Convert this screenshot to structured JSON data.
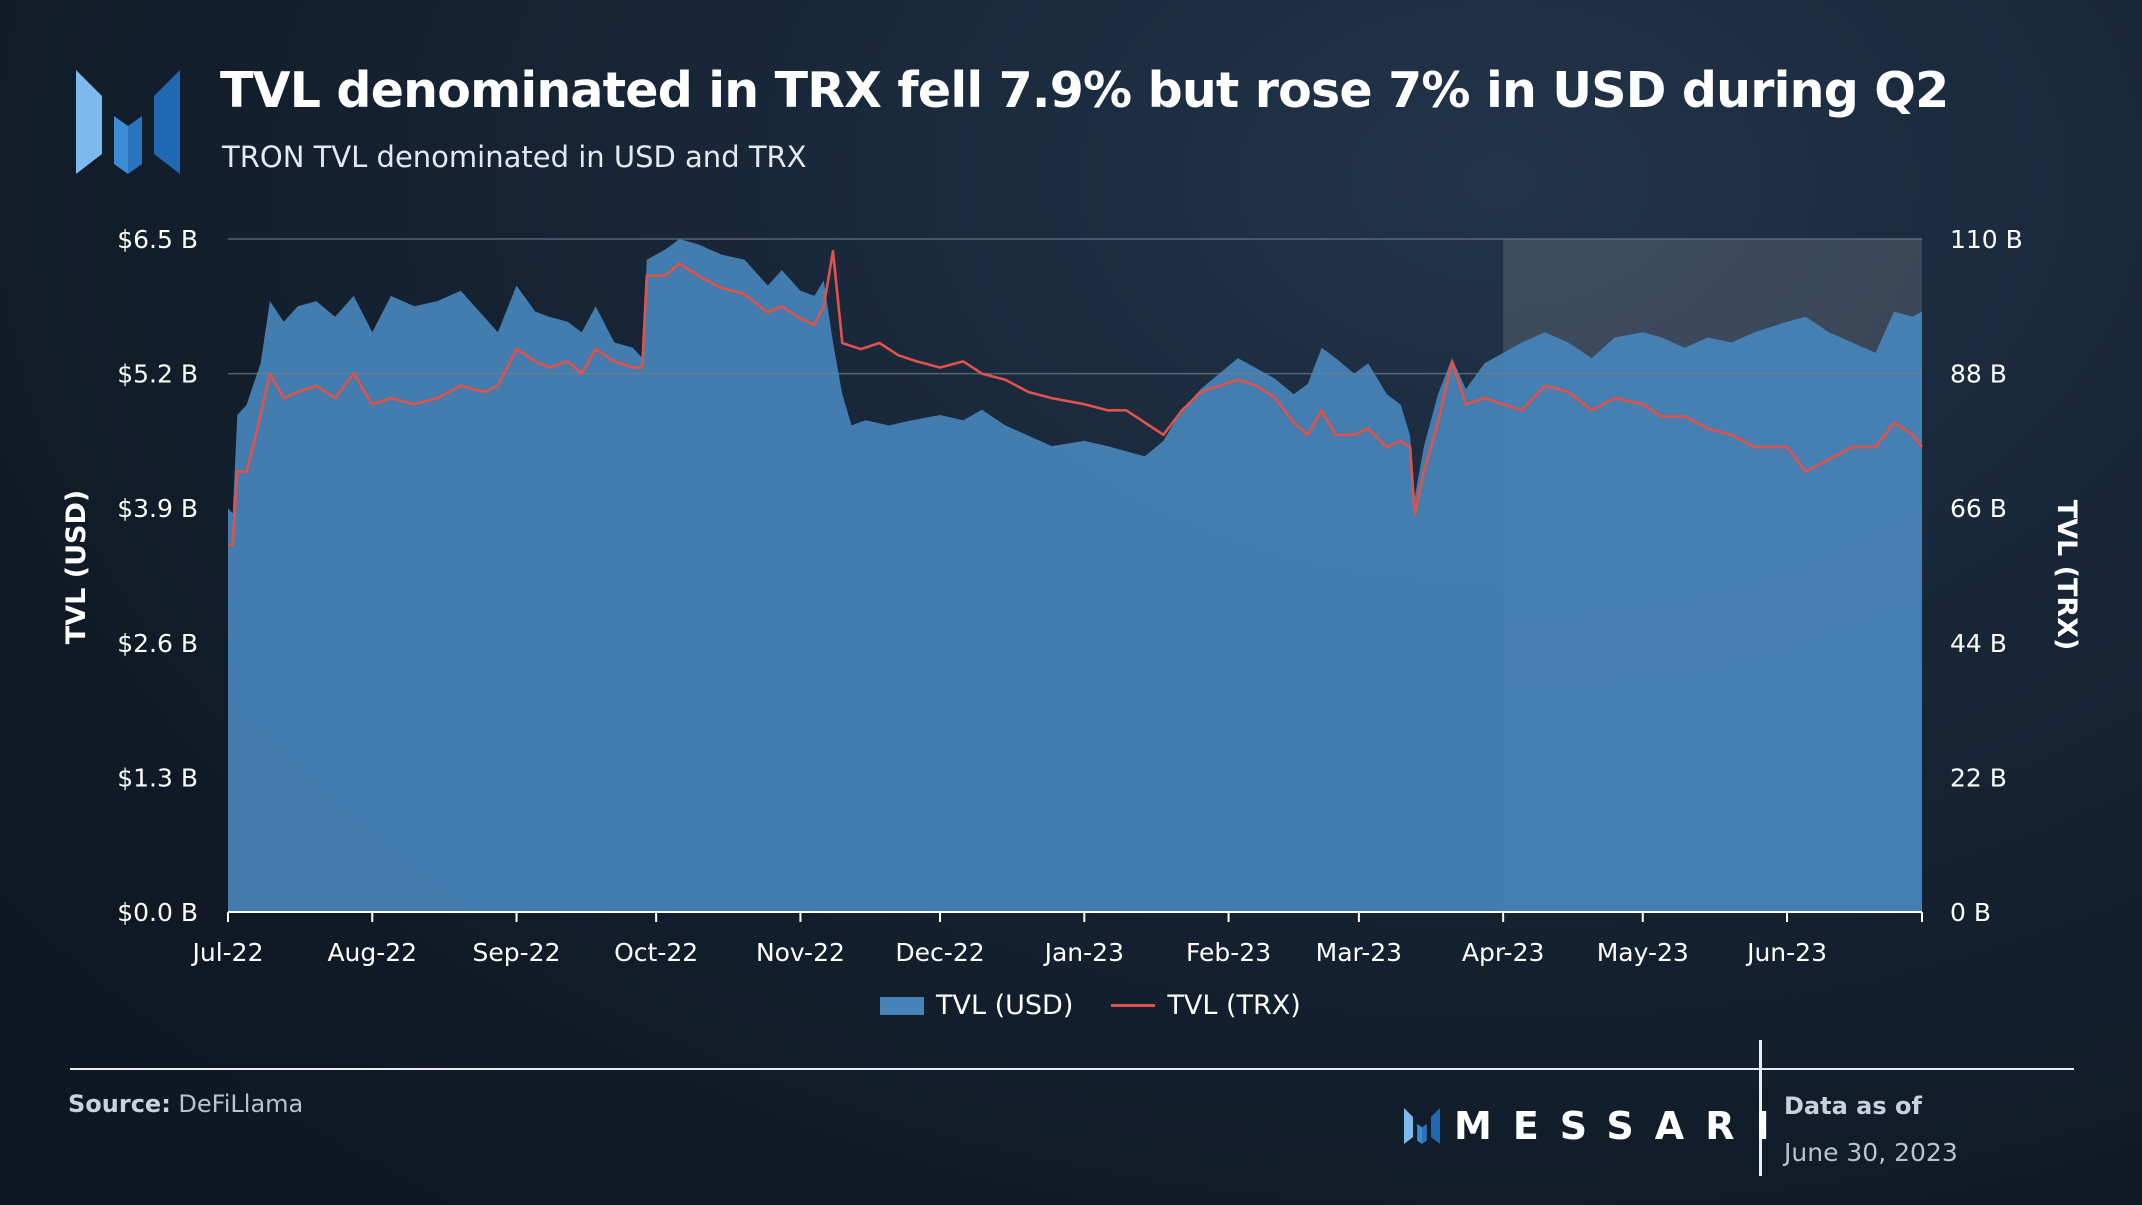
{
  "header": {
    "title": "TVL denominated in TRX fell 7.9% but rose 7% in USD during Q2",
    "subtitle": "TRON TVL denominated in USD and TRX"
  },
  "chart_data": {
    "type": "area",
    "title": "TVL denominated in TRX fell 7.9% but rose 7% in USD during Q2",
    "subtitle": "TRON TVL denominated in USD and TRX",
    "x_start": "2022-07-01",
    "x_end": "2023-06-30",
    "x_tick_labels": [
      "Jul-22",
      "Aug-22",
      "Sep-22",
      "Oct-22",
      "Nov-22",
      "Dec-22",
      "Jan-23",
      "Feb-23",
      "Mar-23",
      "Apr-23",
      "May-23",
      "Jun-23"
    ],
    "x_tick_dates": [
      "2022-07-01",
      "2022-08-01",
      "2022-09-01",
      "2022-10-01",
      "2022-11-01",
      "2022-12-01",
      "2023-01-01",
      "2023-02-01",
      "2023-03-01",
      "2023-04-01",
      "2023-05-01",
      "2023-06-01"
    ],
    "y_left": {
      "label": "TVL (USD)",
      "min": 0,
      "max": 6.5,
      "unit": "B",
      "tick_labels": [
        "$0.0 B",
        "$1.3 B",
        "$2.6 B",
        "$3.9 B",
        "$5.2 B",
        "$6.5 B"
      ],
      "tick_values": [
        0,
        1.3,
        2.6,
        3.9,
        5.2,
        6.5
      ]
    },
    "y_right": {
      "label": "TVL (TRX)",
      "min": 0,
      "max": 110,
      "unit": "B",
      "tick_labels": [
        "0 B",
        "22 B",
        "44 B",
        "66 B",
        "88 B",
        "110 B"
      ],
      "tick_values": [
        0,
        22,
        44,
        66,
        88,
        110
      ]
    },
    "highlight_range": [
      "2023-04-01",
      "2023-06-30"
    ],
    "grid": "horizontal at 5.2 and 6.5 only",
    "legend_position": "bottom-center",
    "series": [
      {
        "name": "TVL (USD)",
        "type": "area",
        "axis": "left",
        "color": "#4783b8",
        "points": [
          [
            "2022-07-01",
            3.9
          ],
          [
            "2022-07-02",
            3.85
          ],
          [
            "2022-07-03",
            4.8
          ],
          [
            "2022-07-05",
            4.9
          ],
          [
            "2022-07-08",
            5.3
          ],
          [
            "2022-07-10",
            5.9
          ],
          [
            "2022-07-13",
            5.7
          ],
          [
            "2022-07-16",
            5.85
          ],
          [
            "2022-07-20",
            5.9
          ],
          [
            "2022-07-24",
            5.75
          ],
          [
            "2022-07-28",
            5.95
          ],
          [
            "2022-08-01",
            5.6
          ],
          [
            "2022-08-05",
            5.95
          ],
          [
            "2022-08-10",
            5.85
          ],
          [
            "2022-08-15",
            5.9
          ],
          [
            "2022-08-20",
            6.0
          ],
          [
            "2022-08-25",
            5.75
          ],
          [
            "2022-08-28",
            5.6
          ],
          [
            "2022-09-01",
            6.05
          ],
          [
            "2022-09-05",
            5.8
          ],
          [
            "2022-09-08",
            5.75
          ],
          [
            "2022-09-12",
            5.7
          ],
          [
            "2022-09-15",
            5.6
          ],
          [
            "2022-09-18",
            5.85
          ],
          [
            "2022-09-22",
            5.5
          ],
          [
            "2022-09-26",
            5.45
          ],
          [
            "2022-09-28",
            5.35
          ],
          [
            "2022-09-29",
            6.3
          ],
          [
            "2022-10-03",
            6.4
          ],
          [
            "2022-10-06",
            6.5
          ],
          [
            "2022-10-10",
            6.45
          ],
          [
            "2022-10-15",
            6.35
          ],
          [
            "2022-10-20",
            6.3
          ],
          [
            "2022-10-25",
            6.05
          ],
          [
            "2022-10-28",
            6.2
          ],
          [
            "2022-11-01",
            6.0
          ],
          [
            "2022-11-04",
            5.95
          ],
          [
            "2022-11-06",
            6.1
          ],
          [
            "2022-11-08",
            5.5
          ],
          [
            "2022-11-10",
            5.0
          ],
          [
            "2022-11-12",
            4.7
          ],
          [
            "2022-11-15",
            4.75
          ],
          [
            "2022-11-20",
            4.7
          ],
          [
            "2022-11-25",
            4.75
          ],
          [
            "2022-12-01",
            4.8
          ],
          [
            "2022-12-06",
            4.75
          ],
          [
            "2022-12-10",
            4.85
          ],
          [
            "2022-12-15",
            4.7
          ],
          [
            "2022-12-20",
            4.6
          ],
          [
            "2022-12-25",
            4.5
          ],
          [
            "2023-01-01",
            4.55
          ],
          [
            "2023-01-06",
            4.5
          ],
          [
            "2023-01-10",
            4.45
          ],
          [
            "2023-01-14",
            4.4
          ],
          [
            "2023-01-18",
            4.55
          ],
          [
            "2023-01-22",
            4.85
          ],
          [
            "2023-01-26",
            5.05
          ],
          [
            "2023-01-30",
            5.2
          ],
          [
            "2023-02-03",
            5.35
          ],
          [
            "2023-02-07",
            5.25
          ],
          [
            "2023-02-11",
            5.15
          ],
          [
            "2023-02-15",
            5.0
          ],
          [
            "2023-02-18",
            5.1
          ],
          [
            "2023-02-21",
            5.45
          ],
          [
            "2023-02-24",
            5.35
          ],
          [
            "2023-02-28",
            5.2
          ],
          [
            "2023-03-03",
            5.3
          ],
          [
            "2023-03-07",
            5.0
          ],
          [
            "2023-03-10",
            4.9
          ],
          [
            "2023-03-12",
            4.6
          ],
          [
            "2023-03-13",
            4.0
          ],
          [
            "2023-03-15",
            4.5
          ],
          [
            "2023-03-18",
            5.0
          ],
          [
            "2023-03-21",
            5.35
          ],
          [
            "2023-03-24",
            5.05
          ],
          [
            "2023-03-28",
            5.3
          ],
          [
            "2023-04-01",
            5.4
          ],
          [
            "2023-04-05",
            5.5
          ],
          [
            "2023-04-10",
            5.6
          ],
          [
            "2023-04-15",
            5.5
          ],
          [
            "2023-04-20",
            5.35
          ],
          [
            "2023-04-25",
            5.55
          ],
          [
            "2023-05-01",
            5.6
          ],
          [
            "2023-05-05",
            5.55
          ],
          [
            "2023-05-10",
            5.45
          ],
          [
            "2023-05-15",
            5.55
          ],
          [
            "2023-05-20",
            5.5
          ],
          [
            "2023-05-25",
            5.6
          ],
          [
            "2023-06-01",
            5.7
          ],
          [
            "2023-06-05",
            5.75
          ],
          [
            "2023-06-10",
            5.6
          ],
          [
            "2023-06-15",
            5.5
          ],
          [
            "2023-06-20",
            5.4
          ],
          [
            "2023-06-24",
            5.8
          ],
          [
            "2023-06-28",
            5.75
          ],
          [
            "2023-06-30",
            5.8
          ]
        ]
      },
      {
        "name": "TVL (TRX)",
        "type": "line",
        "axis": "right",
        "color": "#e0534d",
        "points": [
          [
            "2022-07-01",
            60
          ],
          [
            "2022-07-02",
            60
          ],
          [
            "2022-07-03",
            72
          ],
          [
            "2022-07-05",
            72
          ],
          [
            "2022-07-07",
            78
          ],
          [
            "2022-07-10",
            88
          ],
          [
            "2022-07-13",
            84
          ],
          [
            "2022-07-16",
            85
          ],
          [
            "2022-07-20",
            86
          ],
          [
            "2022-07-24",
            84
          ],
          [
            "2022-07-28",
            88
          ],
          [
            "2022-08-01",
            83
          ],
          [
            "2022-08-05",
            84
          ],
          [
            "2022-08-10",
            83
          ],
          [
            "2022-08-15",
            84
          ],
          [
            "2022-08-20",
            86
          ],
          [
            "2022-08-25",
            85
          ],
          [
            "2022-08-28",
            86
          ],
          [
            "2022-09-01",
            92
          ],
          [
            "2022-09-05",
            90
          ],
          [
            "2022-09-08",
            89
          ],
          [
            "2022-09-12",
            90
          ],
          [
            "2022-09-15",
            88
          ],
          [
            "2022-09-18",
            92
          ],
          [
            "2022-09-22",
            90
          ],
          [
            "2022-09-26",
            89
          ],
          [
            "2022-09-28",
            89
          ],
          [
            "2022-09-29",
            104
          ],
          [
            "2022-10-03",
            104
          ],
          [
            "2022-10-06",
            106
          ],
          [
            "2022-10-10",
            104
          ],
          [
            "2022-10-15",
            102
          ],
          [
            "2022-10-20",
            101
          ],
          [
            "2022-10-25",
            98
          ],
          [
            "2022-10-28",
            99
          ],
          [
            "2022-11-01",
            97
          ],
          [
            "2022-11-04",
            96
          ],
          [
            "2022-11-06",
            99
          ],
          [
            "2022-11-08",
            108
          ],
          [
            "2022-11-10",
            93
          ],
          [
            "2022-11-14",
            92
          ],
          [
            "2022-11-18",
            93
          ],
          [
            "2022-11-22",
            91
          ],
          [
            "2022-11-26",
            90
          ],
          [
            "2022-12-01",
            89
          ],
          [
            "2022-12-06",
            90
          ],
          [
            "2022-12-10",
            88
          ],
          [
            "2022-12-15",
            87
          ],
          [
            "2022-12-20",
            85
          ],
          [
            "2022-12-25",
            84
          ],
          [
            "2023-01-01",
            83
          ],
          [
            "2023-01-06",
            82
          ],
          [
            "2023-01-10",
            82
          ],
          [
            "2023-01-14",
            80
          ],
          [
            "2023-01-18",
            78
          ],
          [
            "2023-01-22",
            82
          ],
          [
            "2023-01-26",
            85
          ],
          [
            "2023-01-30",
            86
          ],
          [
            "2023-02-03",
            87
          ],
          [
            "2023-02-07",
            86
          ],
          [
            "2023-02-11",
            84
          ],
          [
            "2023-02-15",
            80
          ],
          [
            "2023-02-18",
            78
          ],
          [
            "2023-02-21",
            82
          ],
          [
            "2023-02-24",
            78
          ],
          [
            "2023-02-28",
            78
          ],
          [
            "2023-03-03",
            79
          ],
          [
            "2023-03-07",
            76
          ],
          [
            "2023-03-10",
            77
          ],
          [
            "2023-03-12",
            76
          ],
          [
            "2023-03-13",
            65
          ],
          [
            "2023-03-15",
            72
          ],
          [
            "2023-03-18",
            80
          ],
          [
            "2023-03-21",
            90
          ],
          [
            "2023-03-24",
            83
          ],
          [
            "2023-03-28",
            84
          ],
          [
            "2023-04-01",
            83
          ],
          [
            "2023-04-05",
            82
          ],
          [
            "2023-04-10",
            86
          ],
          [
            "2023-04-15",
            85
          ],
          [
            "2023-04-20",
            82
          ],
          [
            "2023-04-25",
            84
          ],
          [
            "2023-05-01",
            83
          ],
          [
            "2023-05-05",
            81
          ],
          [
            "2023-05-10",
            81
          ],
          [
            "2023-05-15",
            79
          ],
          [
            "2023-05-20",
            78
          ],
          [
            "2023-05-25",
            76
          ],
          [
            "2023-06-01",
            76
          ],
          [
            "2023-06-05",
            72
          ],
          [
            "2023-06-10",
            74
          ],
          [
            "2023-06-15",
            76
          ],
          [
            "2023-06-20",
            76
          ],
          [
            "2023-06-24",
            80
          ],
          [
            "2023-06-28",
            78
          ],
          [
            "2023-06-30",
            76
          ]
        ]
      }
    ]
  },
  "legend": {
    "items": [
      {
        "label": "TVL (USD)"
      },
      {
        "label": "TVL (TRX)"
      }
    ]
  },
  "footer": {
    "source_label": "Source:",
    "source_value": " DeFiLlama",
    "brand": "MESSARI",
    "data_as_of_label": "Data as of",
    "data_as_of_date": "June 30, 2023"
  },
  "colors": {
    "background": "#152232",
    "area": "#4783b8",
    "line": "#e0534d",
    "highlight": "#ffffff",
    "logo_light": "#7fb8ea",
    "logo_mid": "#3d8bd4",
    "logo_dark": "#1f6ab3"
  }
}
